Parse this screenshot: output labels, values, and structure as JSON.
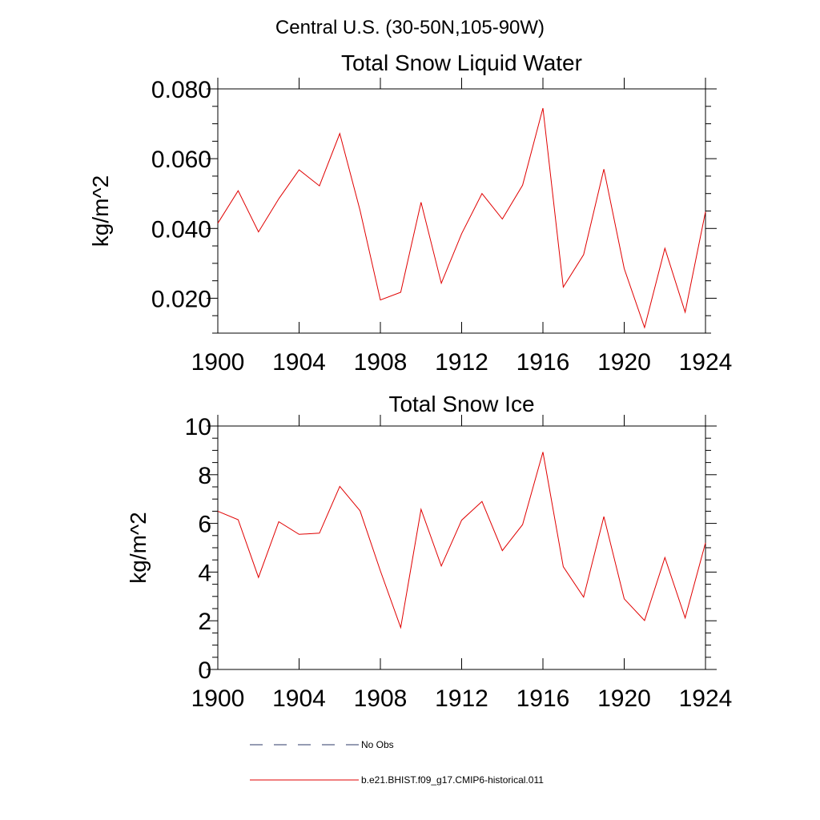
{
  "figure_title": "Central U.S. (30-50N,105-90W)",
  "legend": {
    "items": [
      {
        "label": "No Obs",
        "color": "#2b3a67",
        "style": "dashed"
      },
      {
        "label": "b.e21.BHIST.f09_g17.CMIP6-historical.011",
        "color": "#e00000",
        "style": "solid"
      }
    ]
  },
  "chart_data": [
    {
      "type": "line",
      "title": "Total Snow Liquid Water",
      "xlabel": "",
      "ylabel": "kg/m^2",
      "xlim": [
        1900,
        1924
      ],
      "ylim": [
        0.01,
        0.08
      ],
      "xticks": [
        1900,
        1904,
        1908,
        1912,
        1916,
        1920,
        1924
      ],
      "xtick_labels": [
        "1900",
        "1904",
        "1908",
        "1912",
        "1916",
        "1920",
        "1924"
      ],
      "yticks": [
        0.02,
        0.04,
        0.06,
        0.08
      ],
      "ytick_labels": [
        "0.020",
        "0.040",
        "0.060",
        "0.080"
      ],
      "x": [
        1900,
        1901,
        1902,
        1903,
        1904,
        1905,
        1906,
        1907,
        1908,
        1909,
        1910,
        1911,
        1912,
        1913,
        1914,
        1915,
        1916,
        1917,
        1918,
        1919,
        1920,
        1921,
        1922,
        1923,
        1924
      ],
      "series": [
        {
          "color": "#e00000",
          "values": [
            0.0415,
            0.0508,
            0.039,
            0.0485,
            0.0568,
            0.0522,
            0.0672,
            0.0452,
            0.0195,
            0.0217,
            0.0475,
            0.0243,
            0.0385,
            0.05,
            0.0427,
            0.0524,
            0.0745,
            0.0232,
            0.0325,
            0.057,
            0.0285,
            0.0116,
            0.0343,
            0.016,
            0.0448
          ]
        }
      ]
    },
    {
      "type": "line",
      "title": "Total Snow Ice",
      "xlabel": "",
      "ylabel": "kg/m^2",
      "xlim": [
        1900,
        1924
      ],
      "ylim": [
        0,
        10
      ],
      "xticks": [
        1900,
        1904,
        1908,
        1912,
        1916,
        1920,
        1924
      ],
      "xtick_labels": [
        "1900",
        "1904",
        "1908",
        "1912",
        "1916",
        "1920",
        "1924"
      ],
      "yticks": [
        0,
        2,
        4,
        6,
        8,
        10
      ],
      "ytick_labels": [
        "0",
        "2",
        "4",
        "6",
        "8",
        "10"
      ],
      "x": [
        1900,
        1901,
        1902,
        1903,
        1904,
        1905,
        1906,
        1907,
        1908,
        1909,
        1910,
        1911,
        1912,
        1913,
        1914,
        1915,
        1916,
        1917,
        1918,
        1919,
        1920,
        1921,
        1922,
        1923,
        1924
      ],
      "series": [
        {
          "color": "#e00000",
          "values": [
            6.5,
            6.15,
            3.78,
            6.07,
            5.55,
            5.6,
            7.52,
            6.52,
            4.05,
            1.72,
            6.58,
            4.25,
            6.13,
            6.9,
            4.88,
            5.95,
            8.93,
            4.22,
            2.97,
            6.28,
            2.9,
            2.01,
            4.6,
            2.12,
            5.2
          ]
        }
      ]
    }
  ]
}
